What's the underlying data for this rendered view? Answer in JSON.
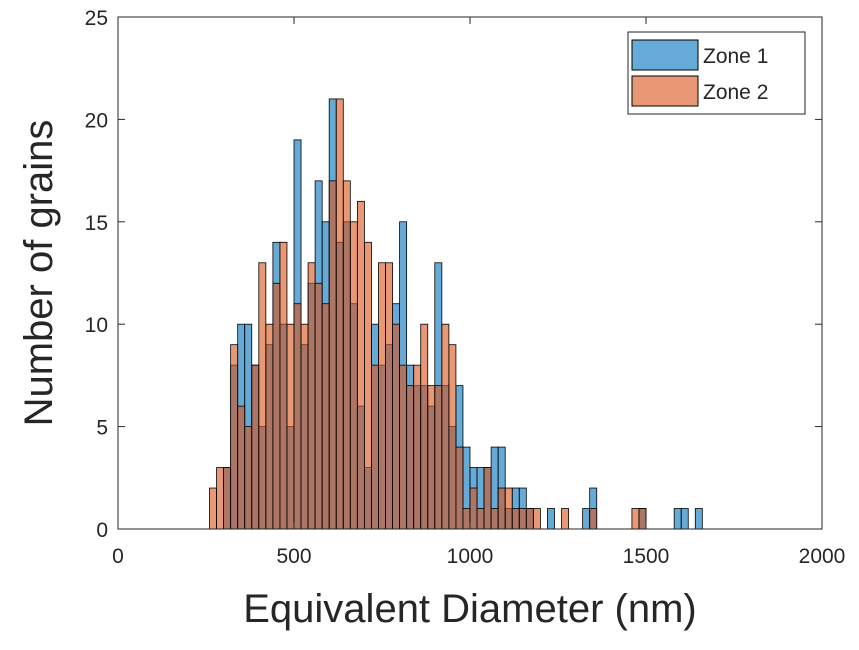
{
  "chart_data": {
    "type": "histogram",
    "xlabel": "Equivalent Diameter (nm)",
    "ylabel": "Number of grains",
    "bins": [
      260,
      280,
      300,
      320,
      340,
      360,
      380,
      400,
      420,
      440,
      460,
      480,
      500,
      520,
      540,
      560,
      580,
      600,
      620,
      640,
      660,
      680,
      700,
      720,
      740,
      760,
      780,
      800,
      820,
      840,
      860,
      880,
      900,
      920,
      940,
      960,
      980,
      1000,
      1020,
      1040,
      1060,
      1080,
      1100,
      1120,
      1140,
      1160,
      1180,
      1200,
      1220,
      1240,
      1260,
      1280,
      1300,
      1320,
      1340,
      1360,
      1380,
      1400,
      1420,
      1440,
      1460,
      1480,
      1500,
      1520,
      1540,
      1560,
      1580,
      1600,
      1620,
      1640,
      1660,
      1680
    ],
    "series": [
      {
        "name": "Zone 1",
        "color": "#0072bd",
        "values": [
          0,
          0,
          3,
          8,
          10,
          10,
          8,
          5,
          9,
          14,
          10,
          5,
          19,
          9,
          12,
          17,
          15,
          21,
          14,
          15,
          11,
          6,
          3,
          10,
          8,
          9,
          11,
          15,
          8,
          7,
          7,
          6,
          13,
          7,
          5,
          7,
          4,
          3,
          3,
          3,
          4,
          4,
          1,
          2,
          2,
          1,
          0,
          0,
          1,
          0,
          0,
          0,
          0,
          1,
          2,
          0,
          0,
          0,
          0,
          0,
          0,
          1,
          0,
          0,
          0,
          0,
          1,
          1,
          0,
          1,
          0
        ]
      },
      {
        "name": "Zone 2",
        "color": "#d95319",
        "values": [
          2,
          3,
          3,
          9,
          6,
          5,
          8,
          13,
          10,
          12,
          14,
          10,
          11,
          10,
          13,
          12,
          11,
          17,
          21,
          17,
          15,
          16,
          14,
          8,
          13,
          13,
          10,
          8,
          7,
          8,
          10,
          7,
          7,
          10,
          9,
          4,
          1,
          2,
          1,
          3,
          1,
          2,
          2,
          1,
          1,
          1,
          1,
          0,
          0,
          0,
          1,
          0,
          0,
          0,
          1,
          0,
          0,
          0,
          0,
          0,
          1,
          1,
          0,
          0,
          0,
          0,
          0,
          0,
          0,
          0,
          0
        ]
      }
    ],
    "xlim": [
      0,
      2000
    ],
    "xticks": [
      0,
      500,
      1000,
      1500,
      2000
    ],
    "ylim": [
      0,
      25
    ],
    "yticks": [
      0,
      5,
      10,
      15,
      20,
      25
    ],
    "legend": "upper right"
  }
}
